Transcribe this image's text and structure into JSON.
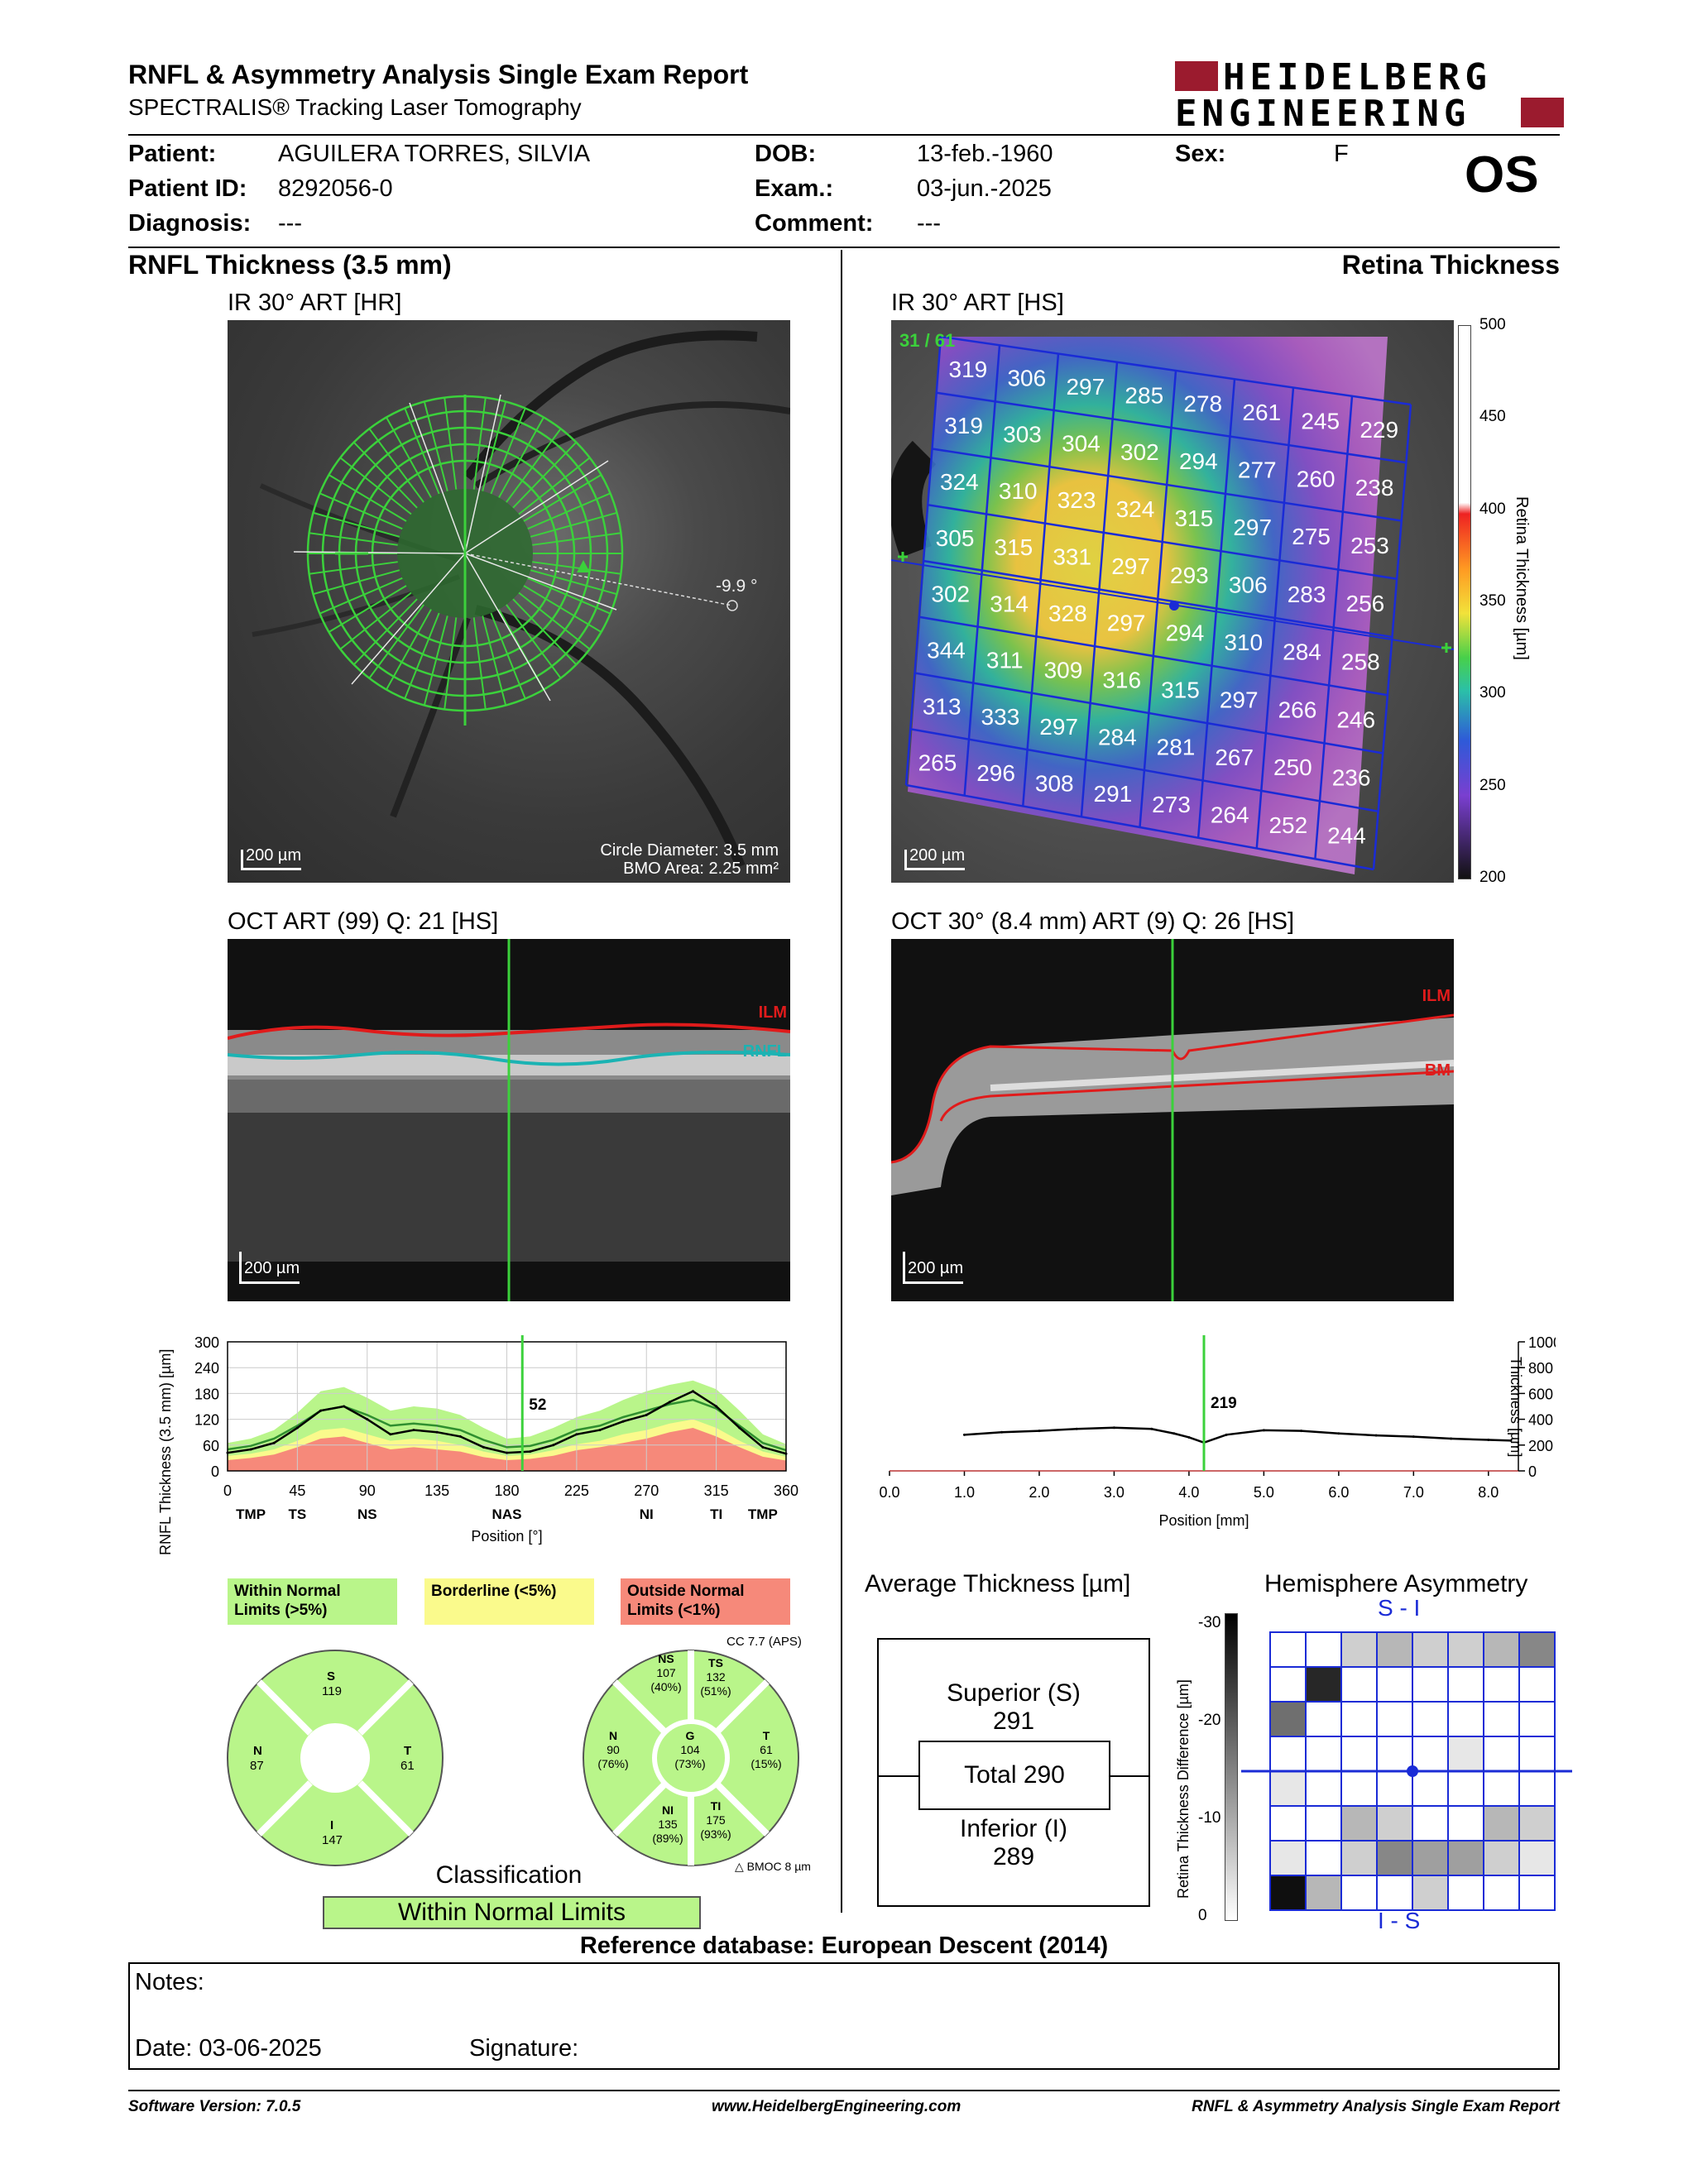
{
  "header": {
    "title": "RNFL & Asymmetry Analysis Single Exam Report",
    "subtitle": "SPECTRALIS® Tracking Laser Tomography",
    "logo_line1": "HEIDELBERG",
    "logo_line2": "ENGINEERING"
  },
  "patient": {
    "patient_label": "Patient:",
    "patient_value": "AGUILERA TORRES, SILVIA",
    "id_label": "Patient ID:",
    "id_value": "8292056-0",
    "diagnosis_label": "Diagnosis:",
    "diagnosis_value": "---",
    "dob_label": "DOB:",
    "dob_value": "13-feb.-1960",
    "exam_label": "Exam.:",
    "exam_value": "03-jun.-2025",
    "comment_label": "Comment:",
    "comment_value": "---",
    "sex_label": "Sex:",
    "sex_value": "F",
    "eye": "OS"
  },
  "left": {
    "section_title": "RNFL Thickness (3.5 mm)",
    "ir_title": "IR 30° ART [HR]",
    "ir_scale": "200 µm",
    "ir_angle": "-9.9 °",
    "ir_circle_diameter": "Circle Diameter: 3.5 mm",
    "ir_bmo_area": "BMO Area: 2.25 mm²",
    "oct_title": "OCT ART (99) Q: 21 [HS]",
    "oct_scale": "200 µm",
    "oct_label_ilm": "ILM",
    "oct_label_rnfl": "RNFL"
  },
  "right": {
    "section_title": "Retina Thickness",
    "ir_title": "IR 30° ART [HS]",
    "ir_scale": "200 µm",
    "ir_counter": "31 / 61",
    "colorbar_label": "Retina Thickness [µm]",
    "colorbar_ticks": [
      "500",
      "450",
      "400",
      "350",
      "300",
      "250",
      "200"
    ],
    "grid_values": [
      [
        "319",
        "306",
        "297",
        "285",
        "278",
        "261",
        "245",
        "229"
      ],
      [
        "319",
        "303",
        "304",
        "302",
        "294",
        "277",
        "260",
        "238"
      ],
      [
        "324",
        "310",
        "323",
        "324",
        "315",
        "297",
        "275",
        "253"
      ],
      [
        "305",
        "315",
        "331",
        "297",
        "293",
        "306",
        "283",
        "256"
      ],
      [
        "302",
        "314",
        "328",
        "297",
        "294",
        "310",
        "284",
        "258"
      ],
      [
        "344",
        "311",
        "309",
        "316",
        "315",
        "297",
        "266",
        "246"
      ],
      [
        "313",
        "333",
        "297",
        "284",
        "281",
        "267",
        "250",
        "236"
      ],
      [
        "265",
        "296",
        "308",
        "291",
        "273",
        "264",
        "252",
        "244"
      ]
    ],
    "oct_title": "OCT 30° (8.4 mm) ART (9) Q: 26 [HS]",
    "oct_scale": "200 µm",
    "oct_label_ilm": "ILM",
    "oct_label_bm": "BM"
  },
  "chart_data": [
    {
      "type": "line",
      "title": "",
      "ylabel": "RNFL Thickness (3.5 mm) [µm]",
      "xlabel": "Position [°]",
      "ylim": [
        0,
        300
      ],
      "xlim": [
        0,
        360
      ],
      "yticks": [
        "0",
        "60",
        "120",
        "180",
        "240",
        "300"
      ],
      "xticks": [
        "0",
        "45",
        "90",
        "135",
        "180",
        "225",
        "270",
        "315",
        "360"
      ],
      "sector_labels": [
        "TMP",
        "TS",
        "NS",
        "NAS",
        "NI",
        "TI",
        "TMP"
      ],
      "cursor_value": "52",
      "cursor_position": 190,
      "x": [
        0,
        15,
        30,
        45,
        60,
        75,
        90,
        105,
        120,
        135,
        150,
        165,
        180,
        195,
        210,
        225,
        240,
        255,
        270,
        285,
        300,
        315,
        330,
        345,
        360
      ],
      "series": [
        {
          "name": "",
          "values": [
            42,
            50,
            65,
            100,
            140,
            150,
            120,
            85,
            95,
            90,
            80,
            55,
            42,
            45,
            60,
            85,
            95,
            115,
            130,
            160,
            185,
            150,
            100,
            55,
            40
          ]
        }
      ],
      "normal_band": {
        "upper": [
          65,
          75,
          95,
          135,
          185,
          195,
          170,
          140,
          150,
          145,
          130,
          100,
          75,
          80,
          100,
          125,
          140,
          165,
          185,
          200,
          210,
          190,
          140,
          85,
          62
        ],
        "mean": [
          50,
          58,
          75,
          105,
          140,
          150,
          130,
          105,
          110,
          105,
          95,
          72,
          55,
          58,
          72,
          95,
          105,
          125,
          140,
          155,
          165,
          145,
          105,
          65,
          48
        ],
        "border": [
          35,
          40,
          50,
          70,
          95,
          100,
          85,
          70,
          75,
          70,
          60,
          45,
          35,
          38,
          48,
          62,
          70,
          85,
          95,
          110,
          120,
          100,
          70,
          45,
          33
        ],
        "outside": [
          25,
          30,
          38,
          55,
          75,
          80,
          65,
          50,
          55,
          50,
          45,
          32,
          25,
          28,
          35,
          48,
          55,
          65,
          75,
          90,
          100,
          80,
          55,
          33,
          24
        ]
      }
    },
    {
      "type": "line",
      "title": "",
      "ylabel": "Thickness [µm]",
      "xlabel": "Position [mm]",
      "ylim": [
        0,
        1000
      ],
      "xlim": [
        0,
        8.4
      ],
      "yticks": [
        "0",
        "200",
        "400",
        "600",
        "800",
        "1000"
      ],
      "xticks": [
        "0.0",
        "1.0",
        "2.0",
        "3.0",
        "4.0",
        "5.0",
        "6.0",
        "7.0",
        "8.0"
      ],
      "cursor_value": "219",
      "cursor_position": 4.2,
      "x": [
        1.0,
        1.5,
        2.0,
        2.5,
        3.0,
        3.5,
        3.8,
        4.0,
        4.2,
        4.5,
        5.0,
        5.5,
        6.0,
        6.5,
        7.0,
        7.5,
        8.0,
        8.3
      ],
      "series": [
        {
          "name": "",
          "values": [
            280,
            300,
            310,
            325,
            335,
            325,
            290,
            260,
            219,
            280,
            315,
            310,
            290,
            275,
            265,
            250,
            240,
            235
          ]
        }
      ]
    }
  ],
  "legend": {
    "within": "Within Normal Limits (>5%)",
    "borderline": "Borderline (<5%)",
    "outside": "Outside Normal Limits (<1%)"
  },
  "sector_small": {
    "S": {
      "label": "S",
      "value": "119"
    },
    "N": {
      "label": "N",
      "value": "87"
    },
    "T": {
      "label": "T",
      "value": "61"
    },
    "I": {
      "label": "I",
      "value": "147"
    }
  },
  "sector_large": {
    "cc": "CC 7.7 (APS)",
    "NS": {
      "label": "NS",
      "value": "107",
      "pct": "(40%)"
    },
    "TS": {
      "label": "TS",
      "value": "132",
      "pct": "(51%)"
    },
    "N": {
      "label": "N",
      "value": "90",
      "pct": "(76%)"
    },
    "G": {
      "label": "G",
      "value": "104",
      "pct": "(73%)"
    },
    "T": {
      "label": "T",
      "value": "61",
      "pct": "(15%)"
    },
    "NI": {
      "label": "NI",
      "value": "135",
      "pct": "(89%)"
    },
    "TI": {
      "label": "TI",
      "value": "175",
      "pct": "(93%)"
    },
    "bmo": "BMOC 8 µm"
  },
  "classification": {
    "title": "Classification",
    "value": "Within Normal Limits"
  },
  "average": {
    "title": "Average Thickness [µm]",
    "superior_label": "Superior (S)",
    "superior_value": "291",
    "total": "Total 290",
    "inferior_label": "Inferior (I)",
    "inferior_value": "289"
  },
  "asymmetry": {
    "title": "Hemisphere Asymmetry",
    "top_label": "S - I",
    "bottom_label": "I - S",
    "scale_label": "Retina Thickness Difference [µm]",
    "scale_ticks": [
      "-30",
      "-20",
      "-10",
      "0"
    ],
    "top_cells": [
      [
        0,
        0,
        2,
        3,
        2,
        2,
        3,
        5
      ],
      [
        0,
        9,
        0,
        0,
        0,
        0,
        0,
        0
      ],
      [
        6,
        0,
        0,
        0,
        0,
        0,
        0,
        0
      ],
      [
        0,
        0,
        0,
        0,
        0,
        1,
        0,
        0
      ]
    ],
    "bottom_cells": [
      [
        1,
        0,
        0,
        0,
        0,
        0,
        0,
        0
      ],
      [
        0,
        0,
        3,
        2,
        0,
        0,
        3,
        2
      ],
      [
        1,
        0,
        2,
        5,
        4,
        4,
        2,
        1
      ],
      [
        10,
        3,
        0,
        0,
        2,
        0,
        0,
        0
      ]
    ]
  },
  "reference": "Reference database: European Descent (2014)",
  "notes": {
    "notes_label": "Notes:",
    "date_label": "Date: 03-06-2025",
    "signature_label": "Signature:"
  },
  "footer": {
    "software": "Software Version: 7.0.5",
    "website": "www.HeidelbergEngineering.com",
    "report": "RNFL & Asymmetry Analysis Single Exam Report"
  }
}
